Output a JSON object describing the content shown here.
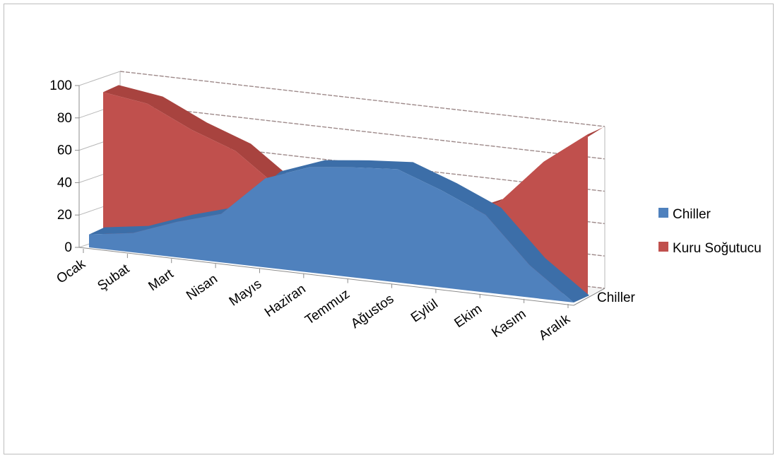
{
  "chart_data": {
    "type": "area",
    "subtype": "3d-area",
    "title": "",
    "xlabel": "",
    "ylabel": "",
    "ylim": [
      0,
      100
    ],
    "yticks": [
      "0",
      "20",
      "40",
      "60",
      "80",
      "100"
    ],
    "categories": [
      "Ocak",
      "Şubat",
      "Mart",
      "Nisan",
      "Mayıs",
      "Haziran",
      "Temmuz",
      "Ağustos",
      "Eylül",
      "Ekim",
      "Kasım",
      "Aralık"
    ],
    "depth_label": "Chiller",
    "grid": true,
    "legend_position": "right",
    "series": [
      {
        "name": "Chiller",
        "color": "#4f81bd",
        "values": [
          8,
          12,
          22,
          30,
          55,
          65,
          68,
          70,
          60,
          48,
          20,
          0
        ]
      },
      {
        "name": "Kuru Soğutucu",
        "color": "#c0504d",
        "values": [
          92,
          88,
          75,
          65,
          45,
          35,
          32,
          30,
          40,
          52,
          80,
          100
        ]
      }
    ]
  }
}
